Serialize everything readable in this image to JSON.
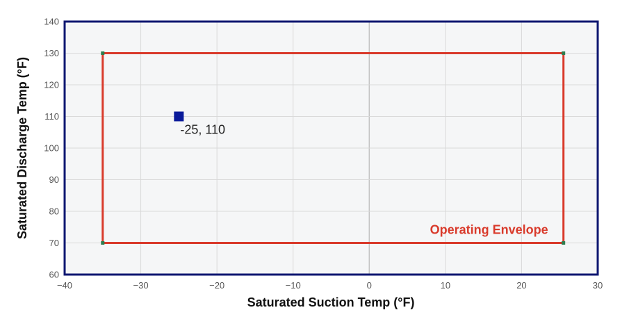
{
  "chart_data": {
    "type": "scatter",
    "xlabel": "Saturated Suction Temp (°F)",
    "ylabel": "Saturated Discharge Temp (°F)",
    "xlim": [
      -40,
      30
    ],
    "ylim": [
      60,
      140
    ],
    "x_ticks": [
      -40,
      -30,
      -20,
      -10,
      0,
      10,
      20,
      30
    ],
    "y_ticks": [
      60,
      70,
      80,
      90,
      100,
      110,
      120,
      130,
      140
    ],
    "grid": true,
    "envelope": {
      "name": "Operating Envelope",
      "points": [
        [
          -35,
          70
        ],
        [
          -35,
          130
        ],
        [
          25.5,
          130
        ],
        [
          25.5,
          70
        ]
      ],
      "color": "#d93a2b",
      "vertex_color": "#2e7d4f"
    },
    "points": [
      {
        "x": -25,
        "y": 110,
        "label": "-25, 110",
        "color": "#0a1a9a"
      }
    ],
    "colors": {
      "plot_background": "#f5f6f7",
      "plot_border": "#0d1670",
      "grid": "#d9d9d9",
      "zero_line": "#c4c4c4"
    }
  }
}
